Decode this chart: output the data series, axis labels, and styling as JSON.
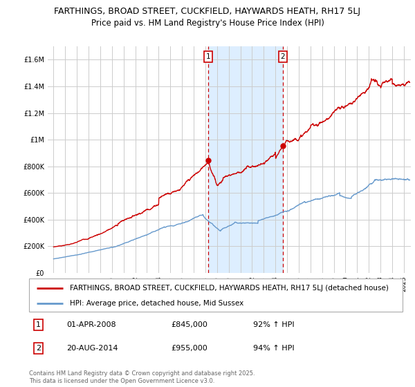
{
  "title_line1": "FARTHINGS, BROAD STREET, CUCKFIELD, HAYWARDS HEATH, RH17 5LJ",
  "title_line2": "Price paid vs. HM Land Registry's House Price Index (HPI)",
  "ylim": [
    0,
    1700000
  ],
  "xlim_start": 1994.5,
  "xlim_end": 2025.6,
  "yticks": [
    0,
    200000,
    400000,
    600000,
    800000,
    1000000,
    1200000,
    1400000,
    1600000
  ],
  "ytick_labels": [
    "£0",
    "£200K",
    "£400K",
    "£600K",
    "£800K",
    "£1M",
    "£1.2M",
    "£1.4M",
    "£1.6M"
  ],
  "xtick_years": [
    1995,
    1996,
    1997,
    1998,
    1999,
    2000,
    2001,
    2002,
    2003,
    2004,
    2005,
    2006,
    2007,
    2008,
    2009,
    2010,
    2011,
    2012,
    2013,
    2014,
    2015,
    2016,
    2017,
    2018,
    2019,
    2020,
    2021,
    2022,
    2023,
    2024,
    2025
  ],
  "red_line_color": "#cc0000",
  "blue_line_color": "#6699cc",
  "shaded_region_color": "#ddeeff",
  "dashed_line_color": "#cc0000",
  "grid_color": "#cccccc",
  "background_color": "#ffffff",
  "marker1_x": 2008.25,
  "marker1_y_red": 845000,
  "marker2_x": 2014.63,
  "marker2_y_red": 955000,
  "marker1_label": "1",
  "marker2_label": "2",
  "legend_red_label": "FARTHINGS, BROAD STREET, CUCKFIELD, HAYWARDS HEATH, RH17 5LJ (detached house)",
  "legend_blue_label": "HPI: Average price, detached house, Mid Sussex",
  "annotation1_num": "1",
  "annotation1_date": "01-APR-2008",
  "annotation1_price": "£845,000",
  "annotation1_hpi": "92% ↑ HPI",
  "annotation2_num": "2",
  "annotation2_date": "20-AUG-2014",
  "annotation2_price": "£955,000",
  "annotation2_hpi": "94% ↑ HPI",
  "copyright_text": "Contains HM Land Registry data © Crown copyright and database right 2025.\nThis data is licensed under the Open Government Licence v3.0.",
  "title_fontsize": 9,
  "subtitle_fontsize": 8.5,
  "tick_fontsize": 7,
  "legend_fontsize": 7.5,
  "annotation_fontsize": 8
}
